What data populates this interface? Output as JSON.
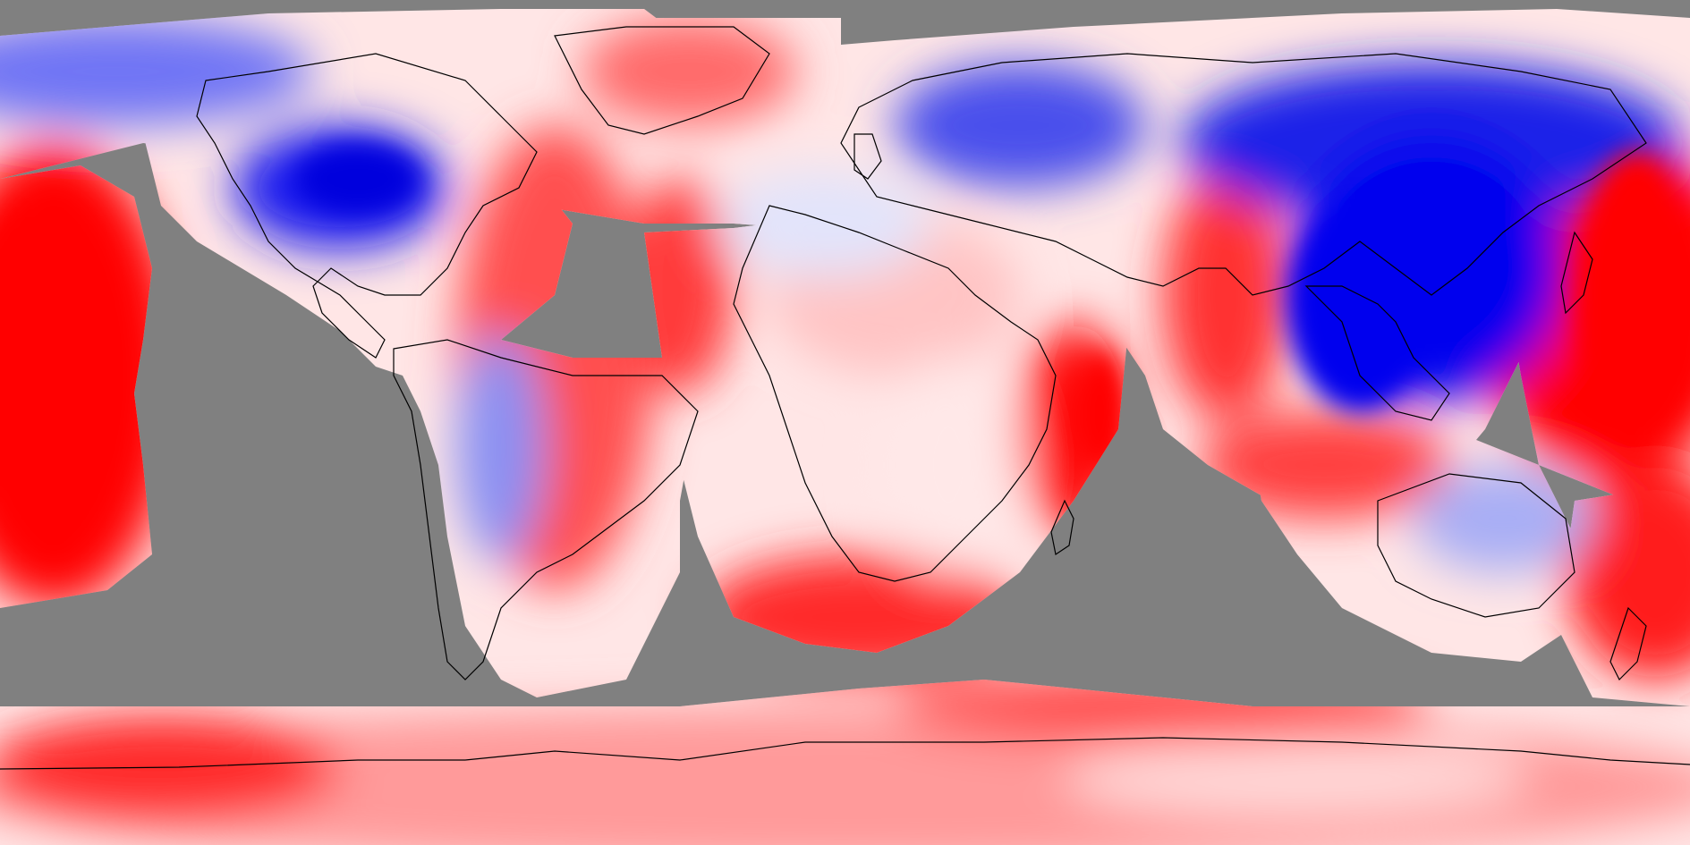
{
  "map": {
    "projection": "equirectangular",
    "lon_range": [
      -180,
      180
    ],
    "lat_range": [
      -90,
      90
    ],
    "no_data_color": "#808080",
    "colors": {
      "cold_strong": "#0000ee",
      "cold_mid": "#6b6bf0",
      "cold_light": "#c9ccf8",
      "neutral": "#ffffff",
      "warm_light": "#ffc8c8",
      "warm_mid": "#ff7676",
      "warm_strong": "#ff0000",
      "coastline": "#000000"
    },
    "legend": "none",
    "title": ""
  }
}
